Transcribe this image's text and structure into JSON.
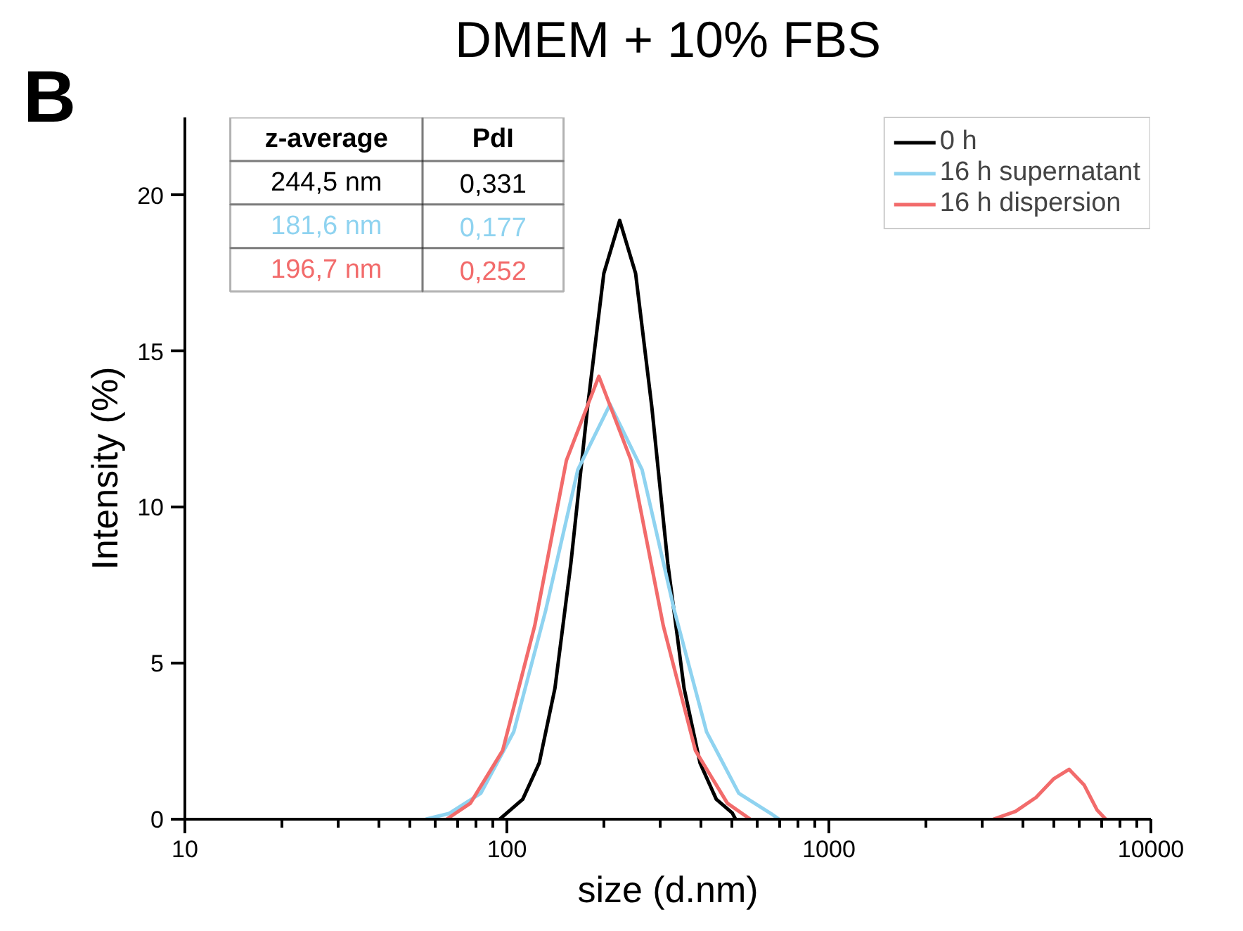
{
  "chart_data": {
    "type": "line",
    "title": "DMEM + 10% FBS",
    "xlabel": "size (d.nm)",
    "ylabel": "Intensity (%)",
    "log": "x",
    "xlim": [
      10,
      10000
    ],
    "xticks": [
      10,
      100,
      1000,
      10000
    ],
    "ylim": [
      0,
      22.5
    ],
    "yticks": [
      0,
      5,
      10,
      15,
      20
    ],
    "grid": false,
    "legend": "top right",
    "line_style": "solid",
    "marker": "none",
    "series": [
      {
        "name": "0 h",
        "color": "#000000",
        "x": [
          95,
          100,
          112,
          126,
          141,
          158,
          178,
          200,
          224,
          251,
          282,
          316,
          355,
          398,
          447,
          501,
          513
        ],
        "values": [
          0,
          0.2,
          0.64,
          1.8,
          4.2,
          8.2,
          13.2,
          17.5,
          19.2,
          17.5,
          13.2,
          8.2,
          4.2,
          1.8,
          0.64,
          0.2,
          0
        ]
      },
      {
        "name": "16 h supernatant",
        "color": "#8fd3f0",
        "x": [
          56,
          66,
          83,
          105,
          132,
          166,
          209,
          263,
          331,
          417,
          525,
          661,
          700
        ],
        "values": [
          0,
          0.18,
          0.83,
          2.8,
          6.7,
          11.2,
          13.3,
          11.2,
          6.7,
          2.8,
          0.83,
          0.18,
          0
        ]
      },
      {
        "name": "16 h dispersion",
        "color": "#f26b6b",
        "x": [
          65,
          77,
          97,
          122,
          153,
          193,
          243,
          306,
          385,
          484,
          570,
          null,
          3240,
          3800,
          4400,
          5000,
          5570,
          6200,
          6800,
          7240
        ],
        "values": [
          0,
          0.51,
          2.2,
          6.2,
          11.5,
          14.2,
          11.5,
          6.2,
          2.2,
          0.51,
          0,
          null,
          0,
          0.25,
          0.7,
          1.3,
          1.6,
          1.1,
          0.3,
          0
        ]
      }
    ],
    "annotations": [
      "B",
      "z-average",
      "PdI",
      "244,5 nm",
      "0,331",
      "181,6 nm",
      "0,177",
      "196,7 nm",
      "0,252"
    ]
  }
}
